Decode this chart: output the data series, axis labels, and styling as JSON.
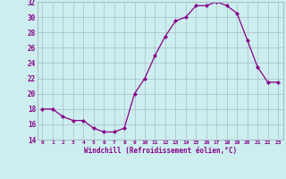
{
  "hours": [
    0,
    1,
    2,
    3,
    4,
    5,
    6,
    7,
    8,
    9,
    10,
    11,
    12,
    13,
    14,
    15,
    16,
    17,
    18,
    19,
    20,
    21,
    22,
    23
  ],
  "values": [
    18,
    18,
    17,
    16.5,
    16.5,
    15.5,
    15,
    15,
    15.5,
    20,
    22,
    25,
    27.5,
    29.5,
    30,
    31.5,
    31.5,
    32,
    31.5,
    30.5,
    27,
    23.5,
    21.5,
    21.5
  ],
  "line_color": "#880088",
  "marker_color": "#880088",
  "bg_color": "#cceeee",
  "grid_color": "#aabbcc",
  "xlabel": "Windchill (Refroidissement éolien,°C)",
  "ylim": [
    14,
    32
  ],
  "yticks": [
    14,
    16,
    18,
    20,
    22,
    24,
    26,
    28,
    30,
    32
  ],
  "xtick_labels": [
    "0",
    "1",
    "2",
    "3",
    "4",
    "5",
    "6",
    "7",
    "8",
    "9",
    "10",
    "11",
    "12",
    "13",
    "14",
    "15",
    "16",
    "17",
    "18",
    "19",
    "20",
    "21",
    "22",
    "23"
  ],
  "tick_color": "#880088",
  "label_color": "#880088"
}
